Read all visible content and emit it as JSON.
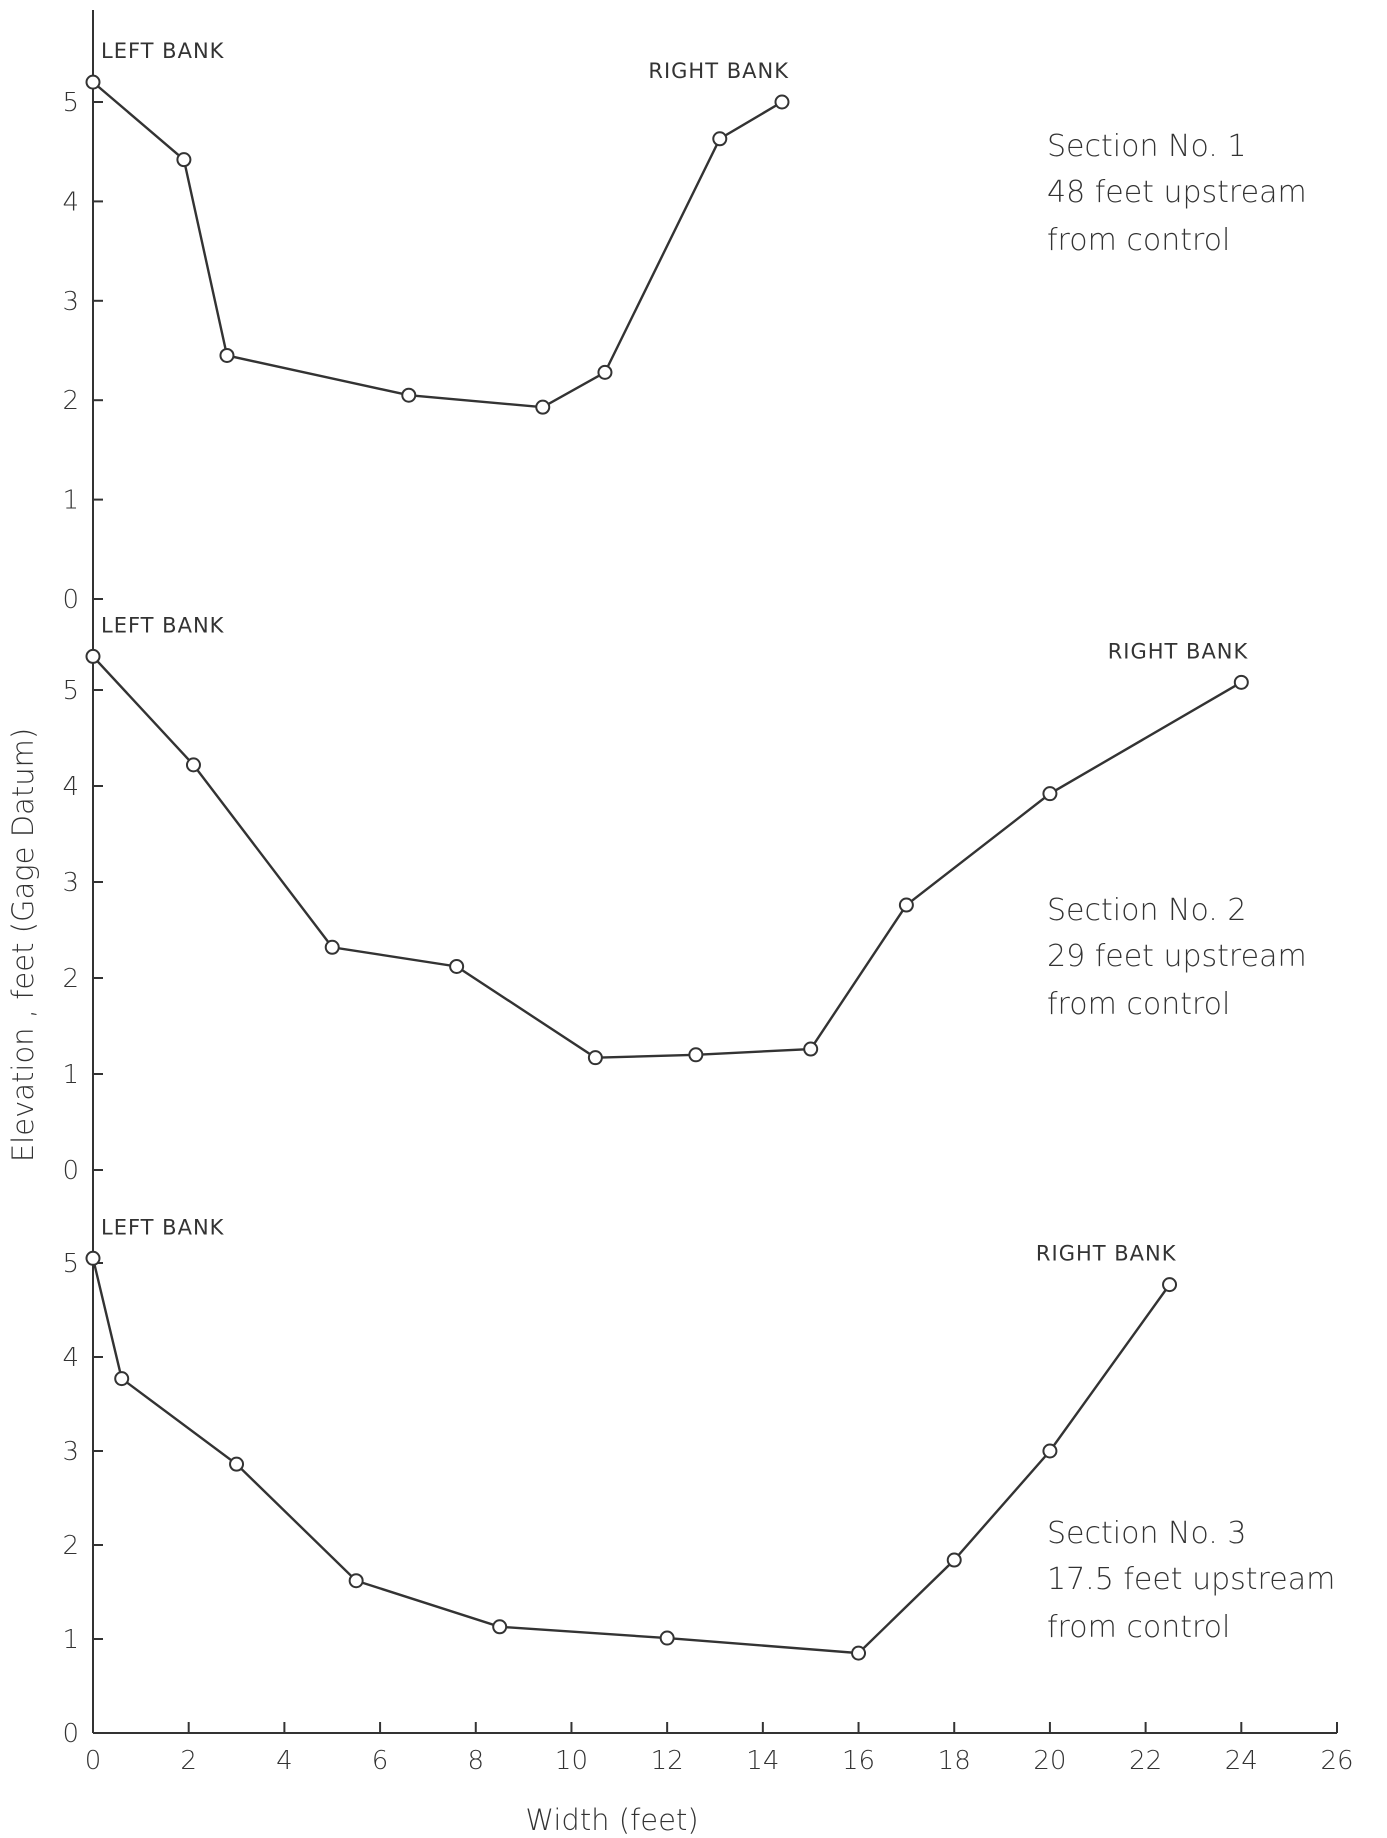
{
  "chart_data": {
    "type": "line",
    "xlabel": "Width (feet)",
    "ylabel": "Elevation , feet (Gage Datum)",
    "x_ticks": [
      0,
      2,
      4,
      6,
      8,
      10,
      12,
      14,
      16,
      18,
      20,
      22,
      24,
      26
    ],
    "xlim": [
      0,
      26
    ],
    "grid": false,
    "panels": [
      {
        "ylim": [
          0,
          5.4
        ],
        "y_ticks": [
          0,
          1,
          2,
          3,
          4,
          5
        ],
        "label_lines": [
          "Section No. 1",
          "48 feet upstream",
          "from control"
        ],
        "left_bank_label": "LEFT BANK",
        "right_bank_label": "RIGHT BANK",
        "series": [
          {
            "x": [
              0,
              1.9,
              2.8,
              6.6,
              9.4,
              10.7,
              13.1,
              14.4
            ],
            "y": [
              5.2,
              4.42,
              2.45,
              2.05,
              1.93,
              2.28,
              4.63,
              5.0
            ]
          }
        ]
      },
      {
        "ylim": [
          0,
          5.4
        ],
        "y_ticks": [
          0,
          1,
          2,
          3,
          4,
          5
        ],
        "label_lines": [
          "Section No. 2",
          "29 feet upstream",
          "from control"
        ],
        "left_bank_label": "LEFT BANK",
        "right_bank_label": "RIGHT BANK",
        "series": [
          {
            "x": [
              0,
              2.1,
              5.0,
              7.6,
              10.5,
              12.6,
              15.0,
              17.0,
              20.0,
              24.0
            ],
            "y": [
              5.35,
              4.22,
              2.32,
              2.12,
              1.17,
              1.2,
              1.26,
              2.76,
              3.92,
              5.08
            ]
          }
        ]
      },
      {
        "ylim": [
          0,
          5.2
        ],
        "y_ticks": [
          0,
          1,
          2,
          3,
          4,
          5
        ],
        "label_lines": [
          "Section No. 3",
          "17.5 feet upstream",
          "from control"
        ],
        "left_bank_label": "LEFT BANK",
        "right_bank_label": "RIGHT BANK",
        "series": [
          {
            "x": [
              0,
              0.6,
              3.0,
              5.5,
              8.5,
              12.0,
              16.0,
              18.0,
              20.0,
              22.5
            ],
            "y": [
              5.05,
              3.77,
              2.86,
              1.62,
              1.13,
              1.01,
              0.85,
              1.84,
              3.0,
              4.77
            ]
          }
        ]
      }
    ]
  }
}
